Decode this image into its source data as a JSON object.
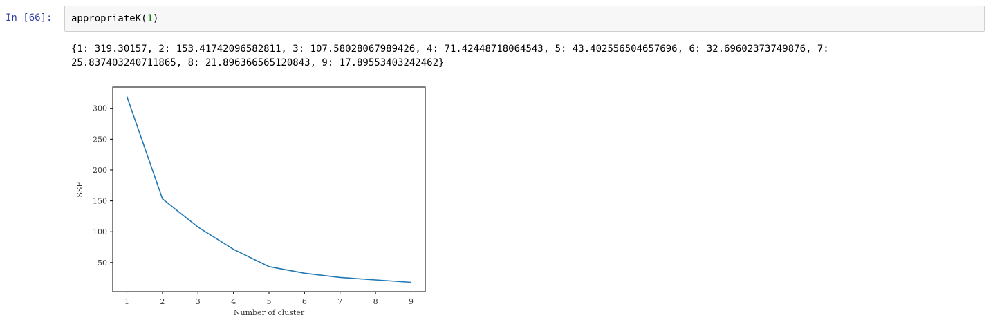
{
  "cell": {
    "prompt": "In [66]:",
    "code_fn": "appropriateK",
    "code_open": "(",
    "code_arg": "1",
    "code_close": ")"
  },
  "output": {
    "line1": "{1: 319.30157, 2: 153.41742096582811, 3: 107.58028067989426, 4: 71.42448718064543, 5: 43.402556504657696, 6: 32.69602373749876, 7:",
    "line2": "25.837403240711865, 8: 21.896366565120843, 9: 17.89553403242462}"
  },
  "chart_data": {
    "type": "line",
    "x": [
      1,
      2,
      3,
      4,
      5,
      6,
      7,
      8,
      9
    ],
    "y": [
      319.30157,
      153.41742096582811,
      107.58028067989426,
      71.42448718064543,
      43.402556504657696,
      32.69602373749876,
      25.837403240711865,
      21.896366565120843,
      17.89553403242462
    ],
    "xlabel": "Number of cluster",
    "ylabel": "SSE",
    "xticks": [
      1,
      2,
      3,
      4,
      5,
      6,
      7,
      8,
      9
    ],
    "yticks": [
      50,
      100,
      150,
      200,
      250,
      300
    ],
    "xlim": [
      0.6,
      9.4
    ],
    "ylim": [
      2.8,
      334.4
    ],
    "line_color": "#1f77b4",
    "grid": false
  }
}
